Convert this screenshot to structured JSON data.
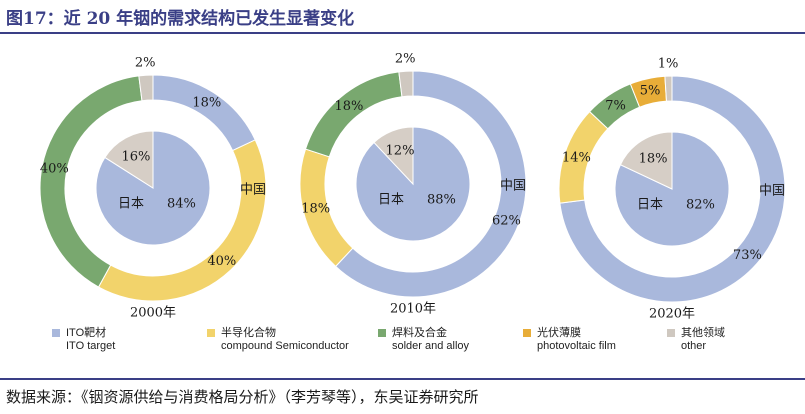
{
  "title": "图17：近 20 年铟的需求结构已发生显著变化",
  "source": "数据来源：《铟资源供给与消费格局分析》（李芳琴等），东吴证券研究所",
  "colors": {
    "ito": "#a9b8dc",
    "semiconductor": "#f2d36b",
    "solder": "#79a86f",
    "photovoltaic": "#e8ad38",
    "other": "#cfc8c0",
    "japan": "#a9b8dc",
    "china_pie": "#d6cec6"
  },
  "legend": [
    {
      "key": "ito",
      "zh": "ITO靶材",
      "en": "ITO target"
    },
    {
      "key": "semiconductor",
      "zh": "半导化合物",
      "en": "compound Semiconductor"
    },
    {
      "key": "solder",
      "zh": "焊料及合金",
      "en": "solder and alloy"
    },
    {
      "key": "photovoltaic",
      "zh": "光伏薄膜",
      "en": "photovoltaic film"
    },
    {
      "key": "other",
      "zh": "其他领域",
      "en": "other"
    }
  ],
  "chart_data": [
    {
      "type": "pie",
      "year_label": "2000年",
      "ring": {
        "name": "",
        "categories": [
          "ITO靶材",
          "半导化合物",
          "焊料及合金",
          "光伏薄膜",
          "其他领域"
        ],
        "values": [
          18,
          40,
          40,
          0,
          2
        ],
        "labels": [
          "18%",
          "40%",
          "40%",
          "",
          "2%"
        ]
      },
      "inner": {
        "categories": [
          "日本",
          "中国"
        ],
        "values": [
          84,
          16
        ],
        "labels": [
          "84%",
          "16%"
        ]
      },
      "region_labels": {
        "japan": "日本",
        "china": "中国"
      }
    },
    {
      "type": "pie",
      "year_label": "2010年",
      "ring": {
        "name": "",
        "categories": [
          "ITO靶材",
          "半导化合物",
          "焊料及合金",
          "光伏薄膜",
          "其他领域"
        ],
        "values": [
          62,
          18,
          18,
          0,
          2
        ],
        "labels": [
          "62%",
          "18%",
          "18%",
          "",
          "2%"
        ]
      },
      "inner": {
        "categories": [
          "日本",
          "中国"
        ],
        "values": [
          88,
          12
        ],
        "labels": [
          "88%",
          "12%"
        ]
      },
      "region_labels": {
        "japan": "日本",
        "china": "中国"
      }
    },
    {
      "type": "pie",
      "year_label": "2020年",
      "ring": {
        "name": "",
        "categories": [
          "ITO靶材",
          "半导化合物",
          "焊料及合金",
          "光伏薄膜",
          "其他领域"
        ],
        "values": [
          73,
          14,
          7,
          5,
          1
        ],
        "labels": [
          "73%",
          "14%",
          "7%",
          "5%",
          "1%"
        ]
      },
      "inner": {
        "categories": [
          "日本",
          "中国"
        ],
        "values": [
          82,
          18
        ],
        "labels": [
          "82%",
          "18%"
        ]
      },
      "region_labels": {
        "japan": "日本",
        "china": "中国"
      }
    }
  ]
}
